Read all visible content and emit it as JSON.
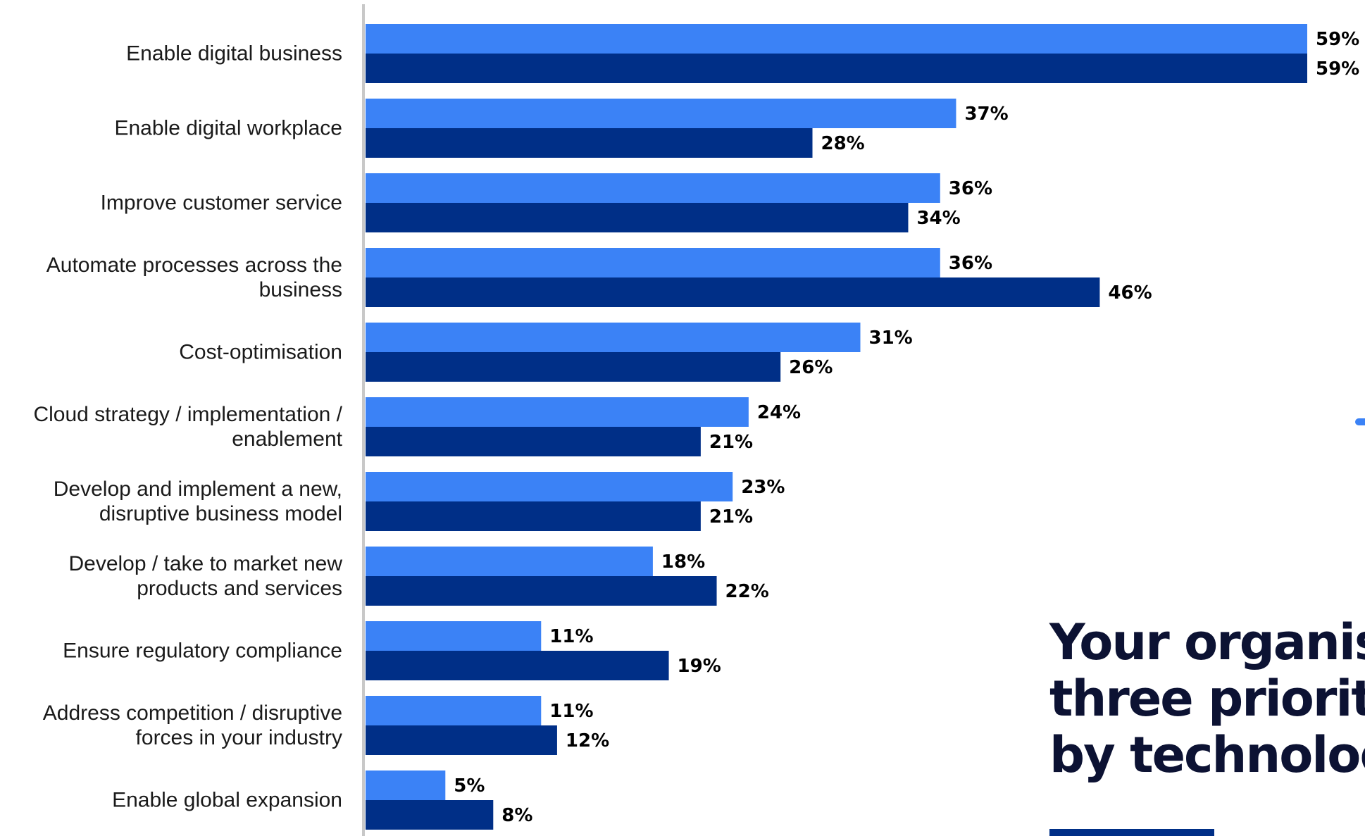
{
  "colors": {
    "series_light": "#3b82f6",
    "series_dark": "#002f87",
    "axis_line": "#c8c8c8",
    "headline_text": "#0c1233",
    "headline_bar": "#002f87",
    "edge_dot": "#3b82f6"
  },
  "headline": {
    "text": "Your organisa\nthree prioritie\nby technology"
  },
  "chart_data": {
    "type": "bar",
    "orientation": "horizontal",
    "categories": [
      "Enable digital business",
      "Enable digital workplace",
      "Improve customer service",
      "Automate processes across the business",
      "Cost-optimisation",
      "Cloud strategy / implementation / enablement",
      "Develop and implement a new, disruptive business model",
      "Develop / take to market new products and services",
      "Ensure regulatory compliance",
      "Address competition / disruptive forces in your industry",
      "Enable global expansion"
    ],
    "category_labels": [
      [
        "Enable digital business"
      ],
      [
        "Enable digital workplace"
      ],
      [
        "Improve customer service"
      ],
      [
        "Automate processes across the",
        "business"
      ],
      [
        "Cost-optimisation"
      ],
      [
        "Cloud strategy / implementation /",
        "enablement"
      ],
      [
        "Develop and implement a new,",
        "disruptive business model"
      ],
      [
        "Develop / take to market new",
        "products and services"
      ],
      [
        "Ensure regulatory compliance"
      ],
      [
        "Address competition / disruptive",
        "forces in your industry"
      ],
      [
        "Enable global expansion"
      ]
    ],
    "series": [
      {
        "values": [
          59,
          37,
          36,
          36,
          31,
          24,
          23,
          18,
          11,
          11,
          5
        ]
      },
      {
        "values": [
          59,
          28,
          34,
          46,
          26,
          21,
          21,
          22,
          19,
          12,
          8
        ]
      }
    ],
    "value_labels": [
      [
        "59%",
        "37%",
        "36%",
        "36%",
        "31%",
        "24%",
        "23%",
        "18%",
        "11%",
        "11%",
        "5%"
      ],
      [
        "59%",
        "28%",
        "34%",
        "46%",
        "26%",
        "21%",
        "21%",
        "22%",
        "19%",
        "12%",
        "8%"
      ]
    ],
    "xlim": [
      0,
      59
    ],
    "unit": "%",
    "grid": false,
    "legend": "none"
  }
}
